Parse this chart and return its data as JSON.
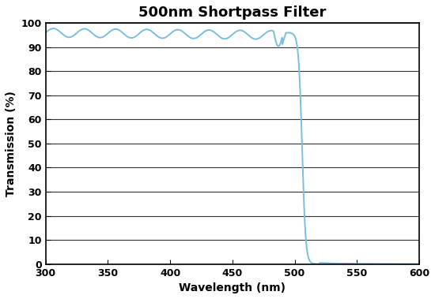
{
  "title": "500nm Shortpass Filter",
  "xlabel": "Wavelength (nm)",
  "ylabel": "Transmission (%)",
  "xlim": [
    300,
    600
  ],
  "ylim": [
    0,
    100
  ],
  "xticks": [
    300,
    350,
    400,
    450,
    500,
    550,
    600
  ],
  "yticks": [
    0,
    10,
    20,
    30,
    40,
    50,
    60,
    70,
    80,
    90,
    100
  ],
  "line_color": "#7abfdf",
  "line_width": 1.4,
  "background_color": "#ffffff",
  "title_fontsize": 13,
  "axis_label_fontsize": 10,
  "tick_labelsize": 9
}
